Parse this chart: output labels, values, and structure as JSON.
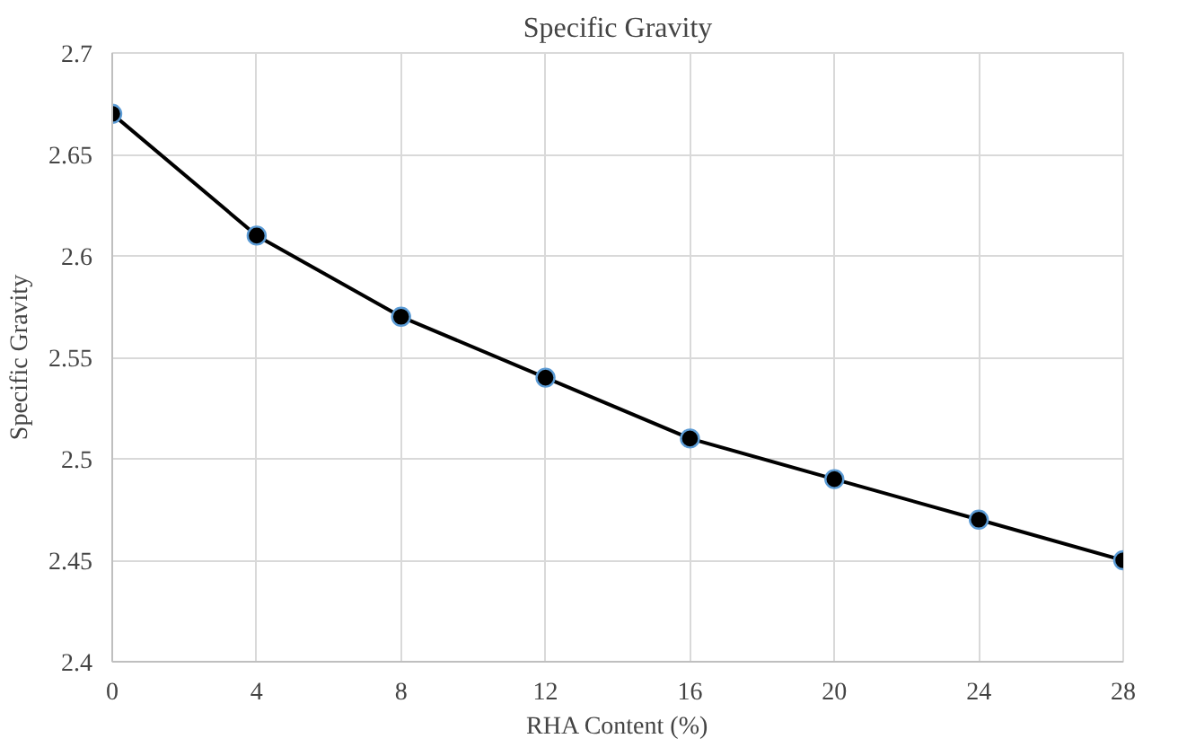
{
  "chart_data": {
    "type": "line",
    "title": "Specific Gravity",
    "xlabel": "RHA Content (%)",
    "ylabel": "Specific Gravity",
    "x": [
      0,
      4,
      8,
      12,
      16,
      20,
      24,
      28
    ],
    "series": [
      {
        "color": "#000000",
        "values": [
          2.67,
          2.61,
          2.57,
          2.54,
          2.51,
          2.49,
          2.47,
          2.45
        ]
      }
    ],
    "xlim": [
      0,
      28
    ],
    "xticks": [
      0,
      4,
      8,
      12,
      16,
      20,
      24,
      28
    ],
    "ylim": [
      2.4,
      2.7
    ],
    "yticks": [
      {
        "value": 2.4,
        "label": "2.4"
      },
      {
        "value": 2.45,
        "label": "2.45"
      },
      {
        "value": 2.5,
        "label": "2.5"
      },
      {
        "value": 2.55,
        "label": "2.55"
      },
      {
        "value": 2.6,
        "label": "2.6"
      },
      {
        "value": 2.65,
        "label": "2.65"
      },
      {
        "value": 2.7,
        "label": "2.7"
      }
    ],
    "grid": true,
    "marker": "circle",
    "line_style": "solid"
  }
}
